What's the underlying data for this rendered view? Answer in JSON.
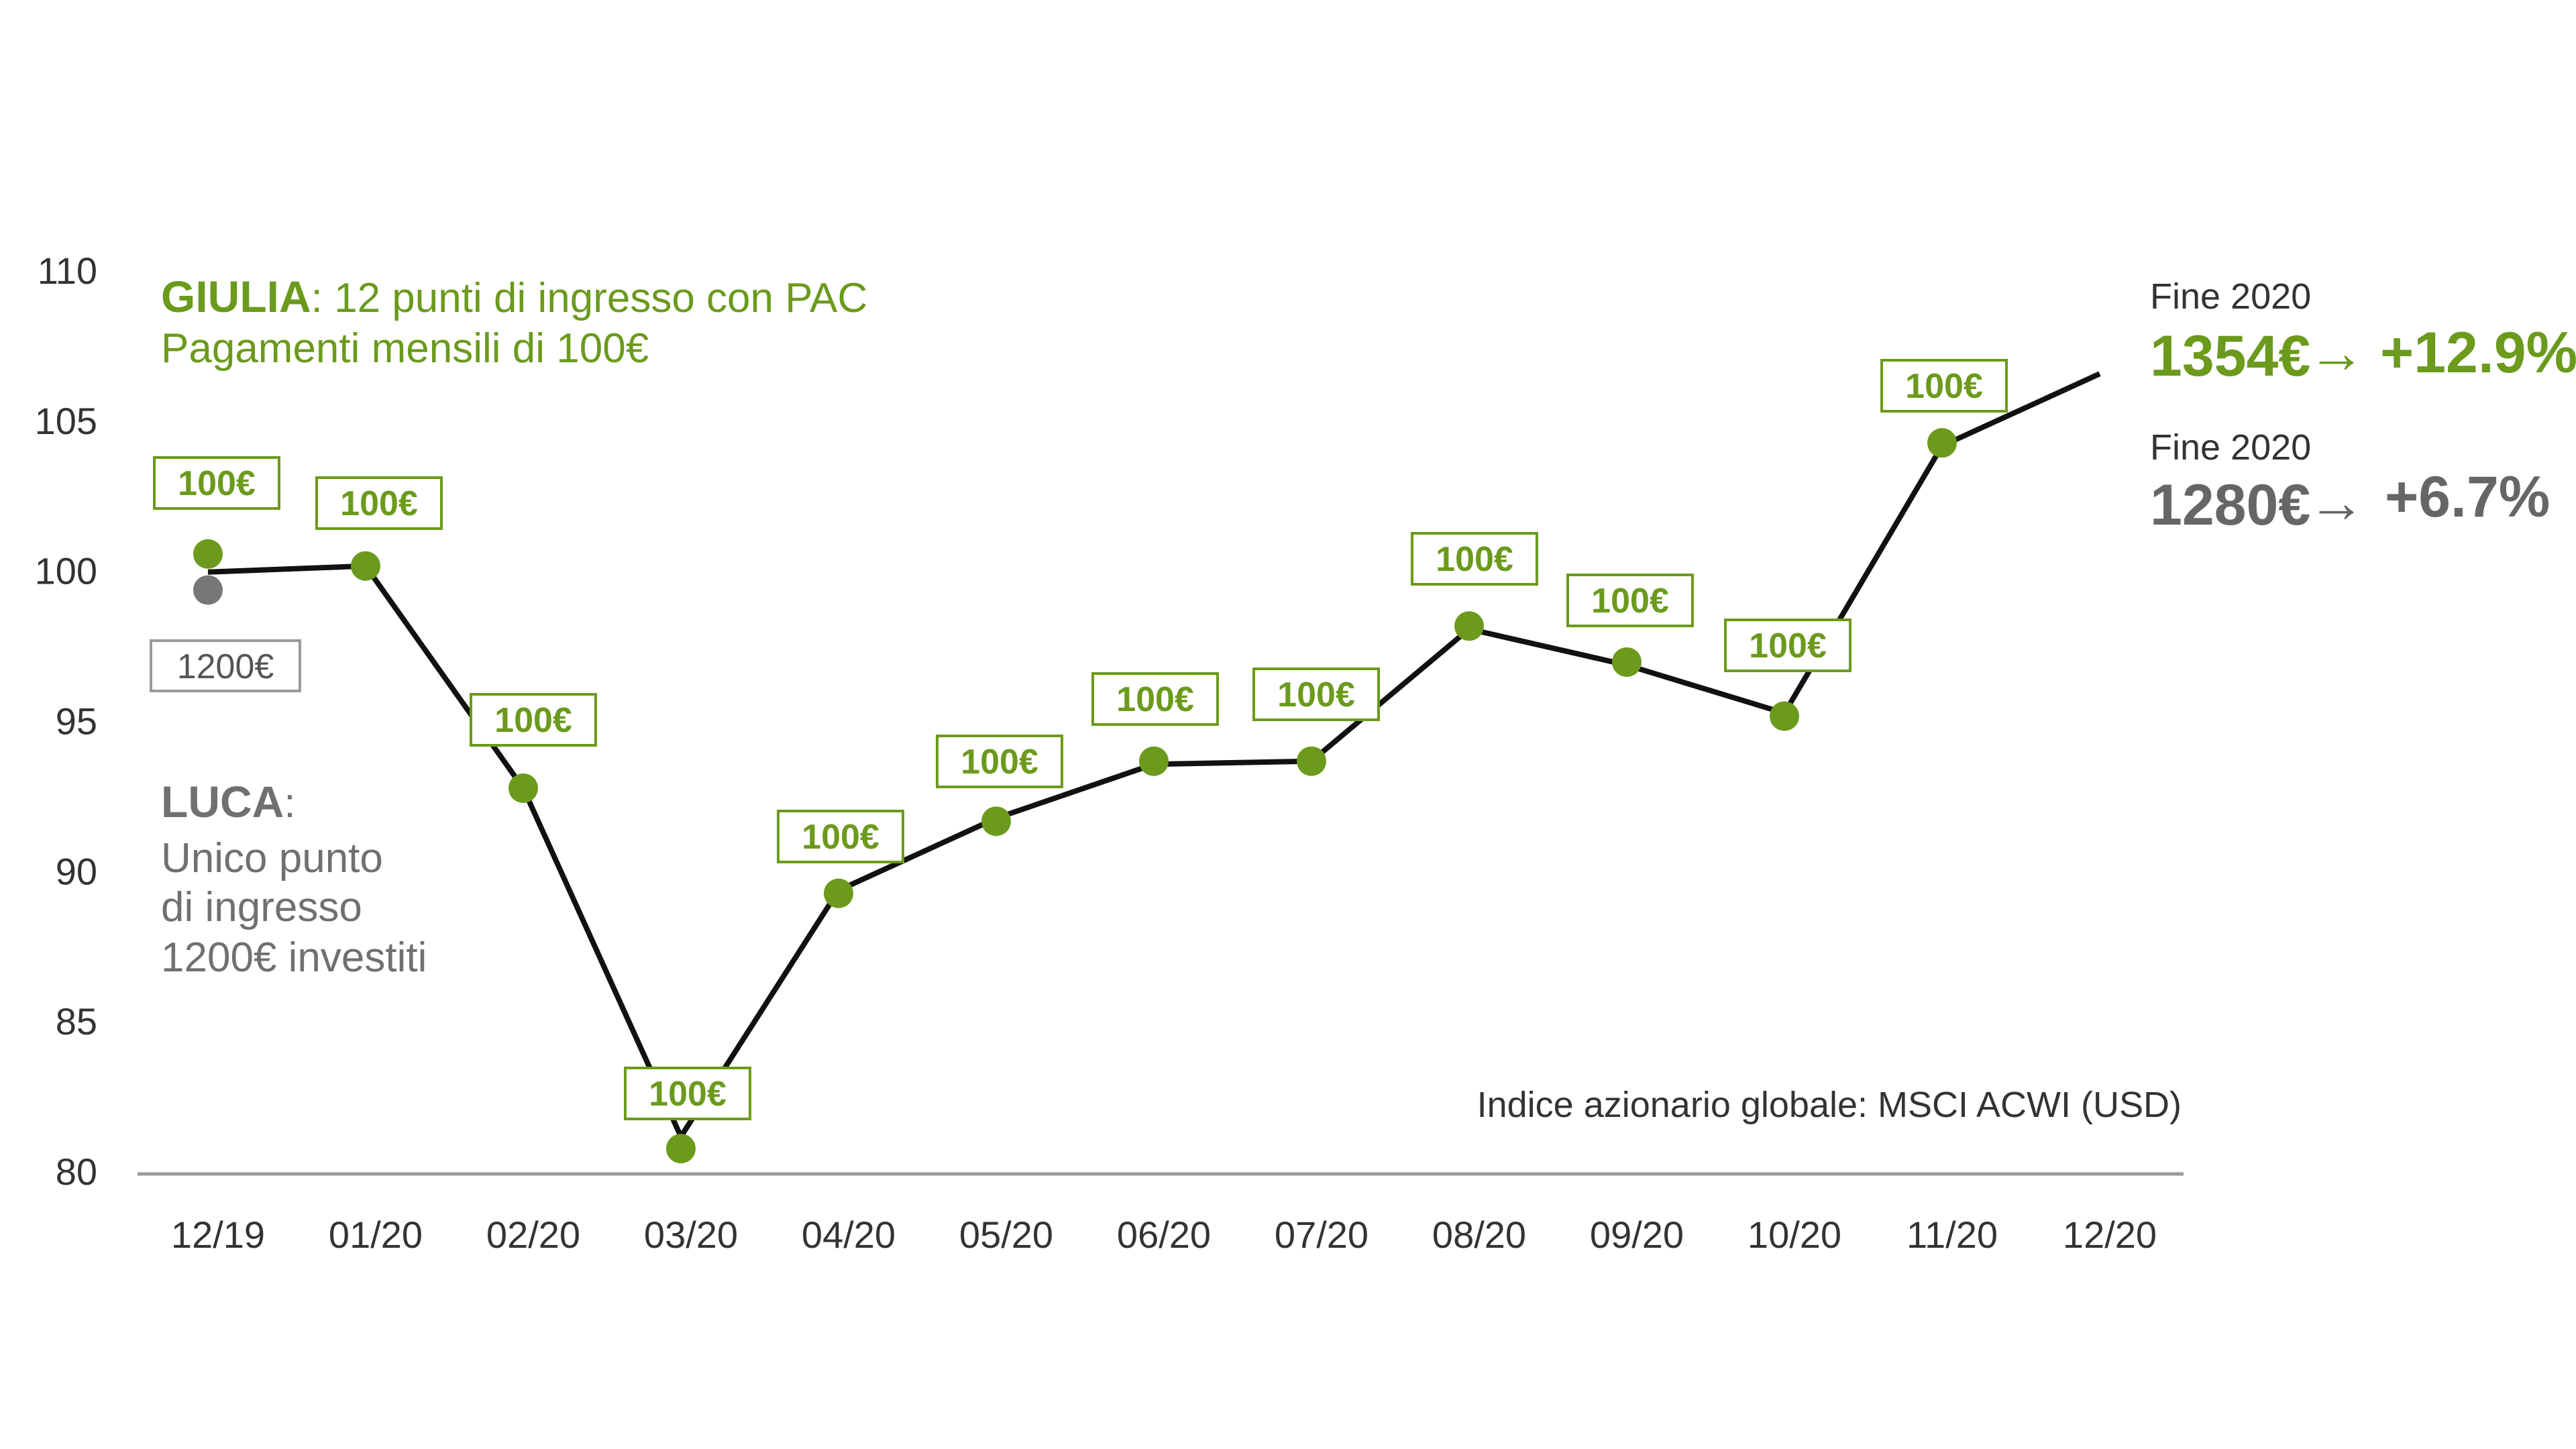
{
  "chart_data": {
    "type": "line",
    "x": [
      "12/19",
      "01/20",
      "02/20",
      "03/20",
      "04/20",
      "05/20",
      "06/20",
      "07/20",
      "08/20",
      "09/20",
      "10/20",
      "11/20",
      "12/20"
    ],
    "y_ticks": [
      "80",
      "85",
      "90",
      "95",
      "100",
      "105",
      "110"
    ],
    "ylim": [
      80,
      110
    ],
    "series": [
      {
        "values": [
          100.0,
          100.2,
          92.8,
          81.2,
          89.4,
          91.8,
          93.6,
          93.7,
          98.1,
          96.9,
          95.3,
          104.2,
          106.6
        ],
        "color": "#111111"
      }
    ],
    "giulia_points": [
      100.6,
      100.2,
      92.8,
      80.8,
      89.3,
      91.7,
      93.7,
      93.7,
      98.2,
      97.0,
      95.2,
      104.3
    ],
    "giulia_point_labels": [
      "100€",
      "100€",
      "100€",
      "100€",
      "100€",
      "100€",
      "100€",
      "100€",
      "100€",
      "100€",
      "100€",
      "100€"
    ],
    "luca_point": 99.4,
    "luca_label": "1200€",
    "point_color_giulia": "#6b9a1c",
    "point_color_luca": "#777777"
  },
  "annotations": {
    "giulia_name": "GIULIA",
    "giulia_line1": ": 12 punti di ingresso con PAC",
    "giulia_line2": "Pagamenti mensili di 100€",
    "luca_name": "LUCA",
    "luca_colon": ":",
    "luca_line1": "Unico punto",
    "luca_line2": "di ingresso",
    "luca_line3": "1200€ investiti",
    "end_giulia_label": "Fine 2020",
    "end_giulia_value": "1354€",
    "end_giulia_pct": "+12.9%",
    "end_luca_label": "Fine 2020",
    "end_luca_value": "1280€",
    "end_luca_pct": "+6.7%",
    "arrow_glyph": "→",
    "source": "Indice azionario globale: MSCI ACWI (USD)"
  }
}
